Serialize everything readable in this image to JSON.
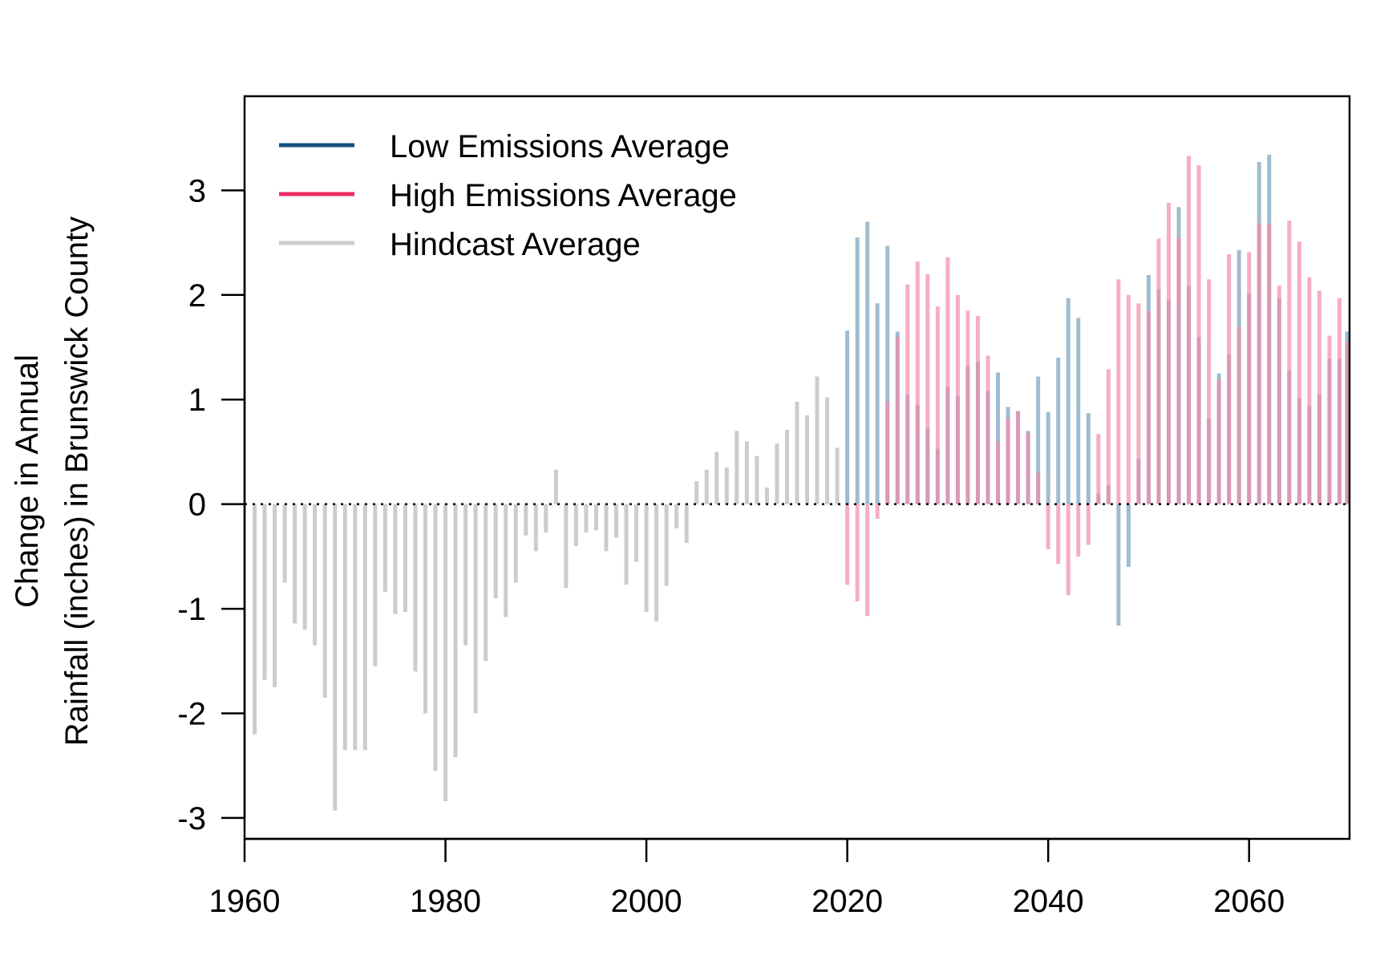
{
  "chart_data": {
    "type": "bar",
    "ylabel_line1": "Change in Annual",
    "ylabel_line2": "Rainfall (inches) in Brunswick County",
    "xlim": [
      1960,
      2070
    ],
    "ylim": [
      -3.2,
      3.9
    ],
    "x_ticks": [
      "1960",
      "1980",
      "2000",
      "2020",
      "2040",
      "2060"
    ],
    "y_ticks": [
      "-3",
      "-2",
      "-1",
      "0",
      "1",
      "2",
      "3"
    ],
    "legend_position": "top-left",
    "legend": [
      "Low Emissions Average",
      "High Emissions Average",
      "Hindcast Average"
    ],
    "colors": {
      "low": "#13507d",
      "high": "#ec2a62",
      "hindcast": "#cccccc",
      "low_bar": "#7fa5c2",
      "high_bar": "#f48aab"
    },
    "series": [
      {
        "name": "Hindcast Average",
        "x": [
          1961,
          1962,
          1963,
          1964,
          1965,
          1966,
          1967,
          1968,
          1969,
          1970,
          1971,
          1972,
          1973,
          1974,
          1975,
          1976,
          1977,
          1978,
          1979,
          1980,
          1981,
          1982,
          1983,
          1984,
          1985,
          1986,
          1987,
          1988,
          1989,
          1990,
          1991,
          1992,
          1993,
          1994,
          1995,
          1996,
          1997,
          1998,
          1999,
          2000,
          2001,
          2002,
          2003,
          2004,
          2005,
          2006,
          2007,
          2008,
          2009,
          2010,
          2011,
          2012,
          2013,
          2014,
          2015,
          2016,
          2017,
          2018,
          2019
        ],
        "values": [
          -2.2,
          -1.68,
          -1.75,
          -0.75,
          -1.14,
          -1.2,
          -1.35,
          -1.85,
          -2.93,
          -2.35,
          -2.35,
          -2.35,
          -1.55,
          -0.84,
          -1.05,
          -1.03,
          -1.6,
          -2.0,
          -2.55,
          -2.84,
          -2.42,
          -1.35,
          -2.0,
          -1.5,
          -0.9,
          -1.08,
          -0.75,
          -0.3,
          -0.45,
          -0.27,
          0.33,
          -0.8,
          -0.4,
          -0.27,
          -0.25,
          -0.45,
          -0.32,
          -0.77,
          -0.55,
          -1.03,
          -1.12,
          -0.78,
          -0.23,
          -0.37,
          0.22,
          0.33,
          0.5,
          0.35,
          0.7,
          0.6,
          0.46,
          0.16,
          0.58,
          0.71,
          0.98,
          0.85,
          1.22,
          1.02,
          0.54
        ]
      },
      {
        "name": "Low Emissions Average",
        "x": [
          2020,
          2021,
          2022,
          2023,
          2024,
          2025,
          2026,
          2027,
          2028,
          2029,
          2030,
          2031,
          2032,
          2033,
          2034,
          2035,
          2036,
          2037,
          2038,
          2039,
          2040,
          2041,
          2042,
          2043,
          2044,
          2045,
          2046,
          2047,
          2048,
          2049,
          2050,
          2051,
          2052,
          2053,
          2054,
          2055,
          2056,
          2057,
          2058,
          2059,
          2060,
          2061,
          2062,
          2063,
          2064,
          2065,
          2066,
          2067,
          2068,
          2069,
          2070
        ],
        "values": [
          1.66,
          2.55,
          2.7,
          1.92,
          2.47,
          1.65,
          1.05,
          0.95,
          0.73,
          0.53,
          1.12,
          1.03,
          1.32,
          1.36,
          1.08,
          1.26,
          0.93,
          0.89,
          0.7,
          1.22,
          0.88,
          1.4,
          1.97,
          1.78,
          0.87,
          0.1,
          0.18,
          -1.16,
          -0.6,
          0.43,
          2.19,
          2.05,
          1.95,
          2.84,
          2.09,
          1.6,
          0.82,
          1.25,
          1.43,
          2.43,
          2.01,
          3.27,
          3.34,
          1.97,
          1.28,
          1.01,
          0.94,
          1.05,
          1.39,
          1.39,
          1.65
        ]
      },
      {
        "name": "High Emissions Average",
        "x": [
          2020,
          2021,
          2022,
          2023,
          2024,
          2025,
          2026,
          2027,
          2028,
          2029,
          2030,
          2031,
          2032,
          2033,
          2034,
          2035,
          2036,
          2037,
          2038,
          2039,
          2040,
          2041,
          2042,
          2043,
          2044,
          2045,
          2046,
          2047,
          2048,
          2049,
          2050,
          2051,
          2052,
          2053,
          2054,
          2055,
          2056,
          2057,
          2058,
          2059,
          2060,
          2061,
          2062,
          2063,
          2064,
          2065,
          2066,
          2067,
          2068,
          2069,
          2070
        ],
        "values": [
          -0.77,
          -0.93,
          -1.07,
          -0.14,
          0.98,
          1.6,
          2.1,
          2.32,
          2.2,
          1.89,
          2.36,
          2.0,
          1.85,
          1.8,
          1.42,
          0.6,
          0.82,
          0.89,
          0.68,
          0.3,
          -0.43,
          -0.57,
          -0.87,
          -0.5,
          -0.39,
          0.67,
          1.29,
          2.15,
          2.0,
          1.92,
          1.85,
          2.54,
          2.88,
          2.55,
          3.33,
          3.24,
          2.15,
          1.19,
          2.39,
          1.7,
          2.41,
          2.68,
          2.68,
          2.09,
          2.71,
          2.51,
          2.17,
          2.04,
          1.61,
          1.97,
          1.55
        ]
      }
    ]
  }
}
